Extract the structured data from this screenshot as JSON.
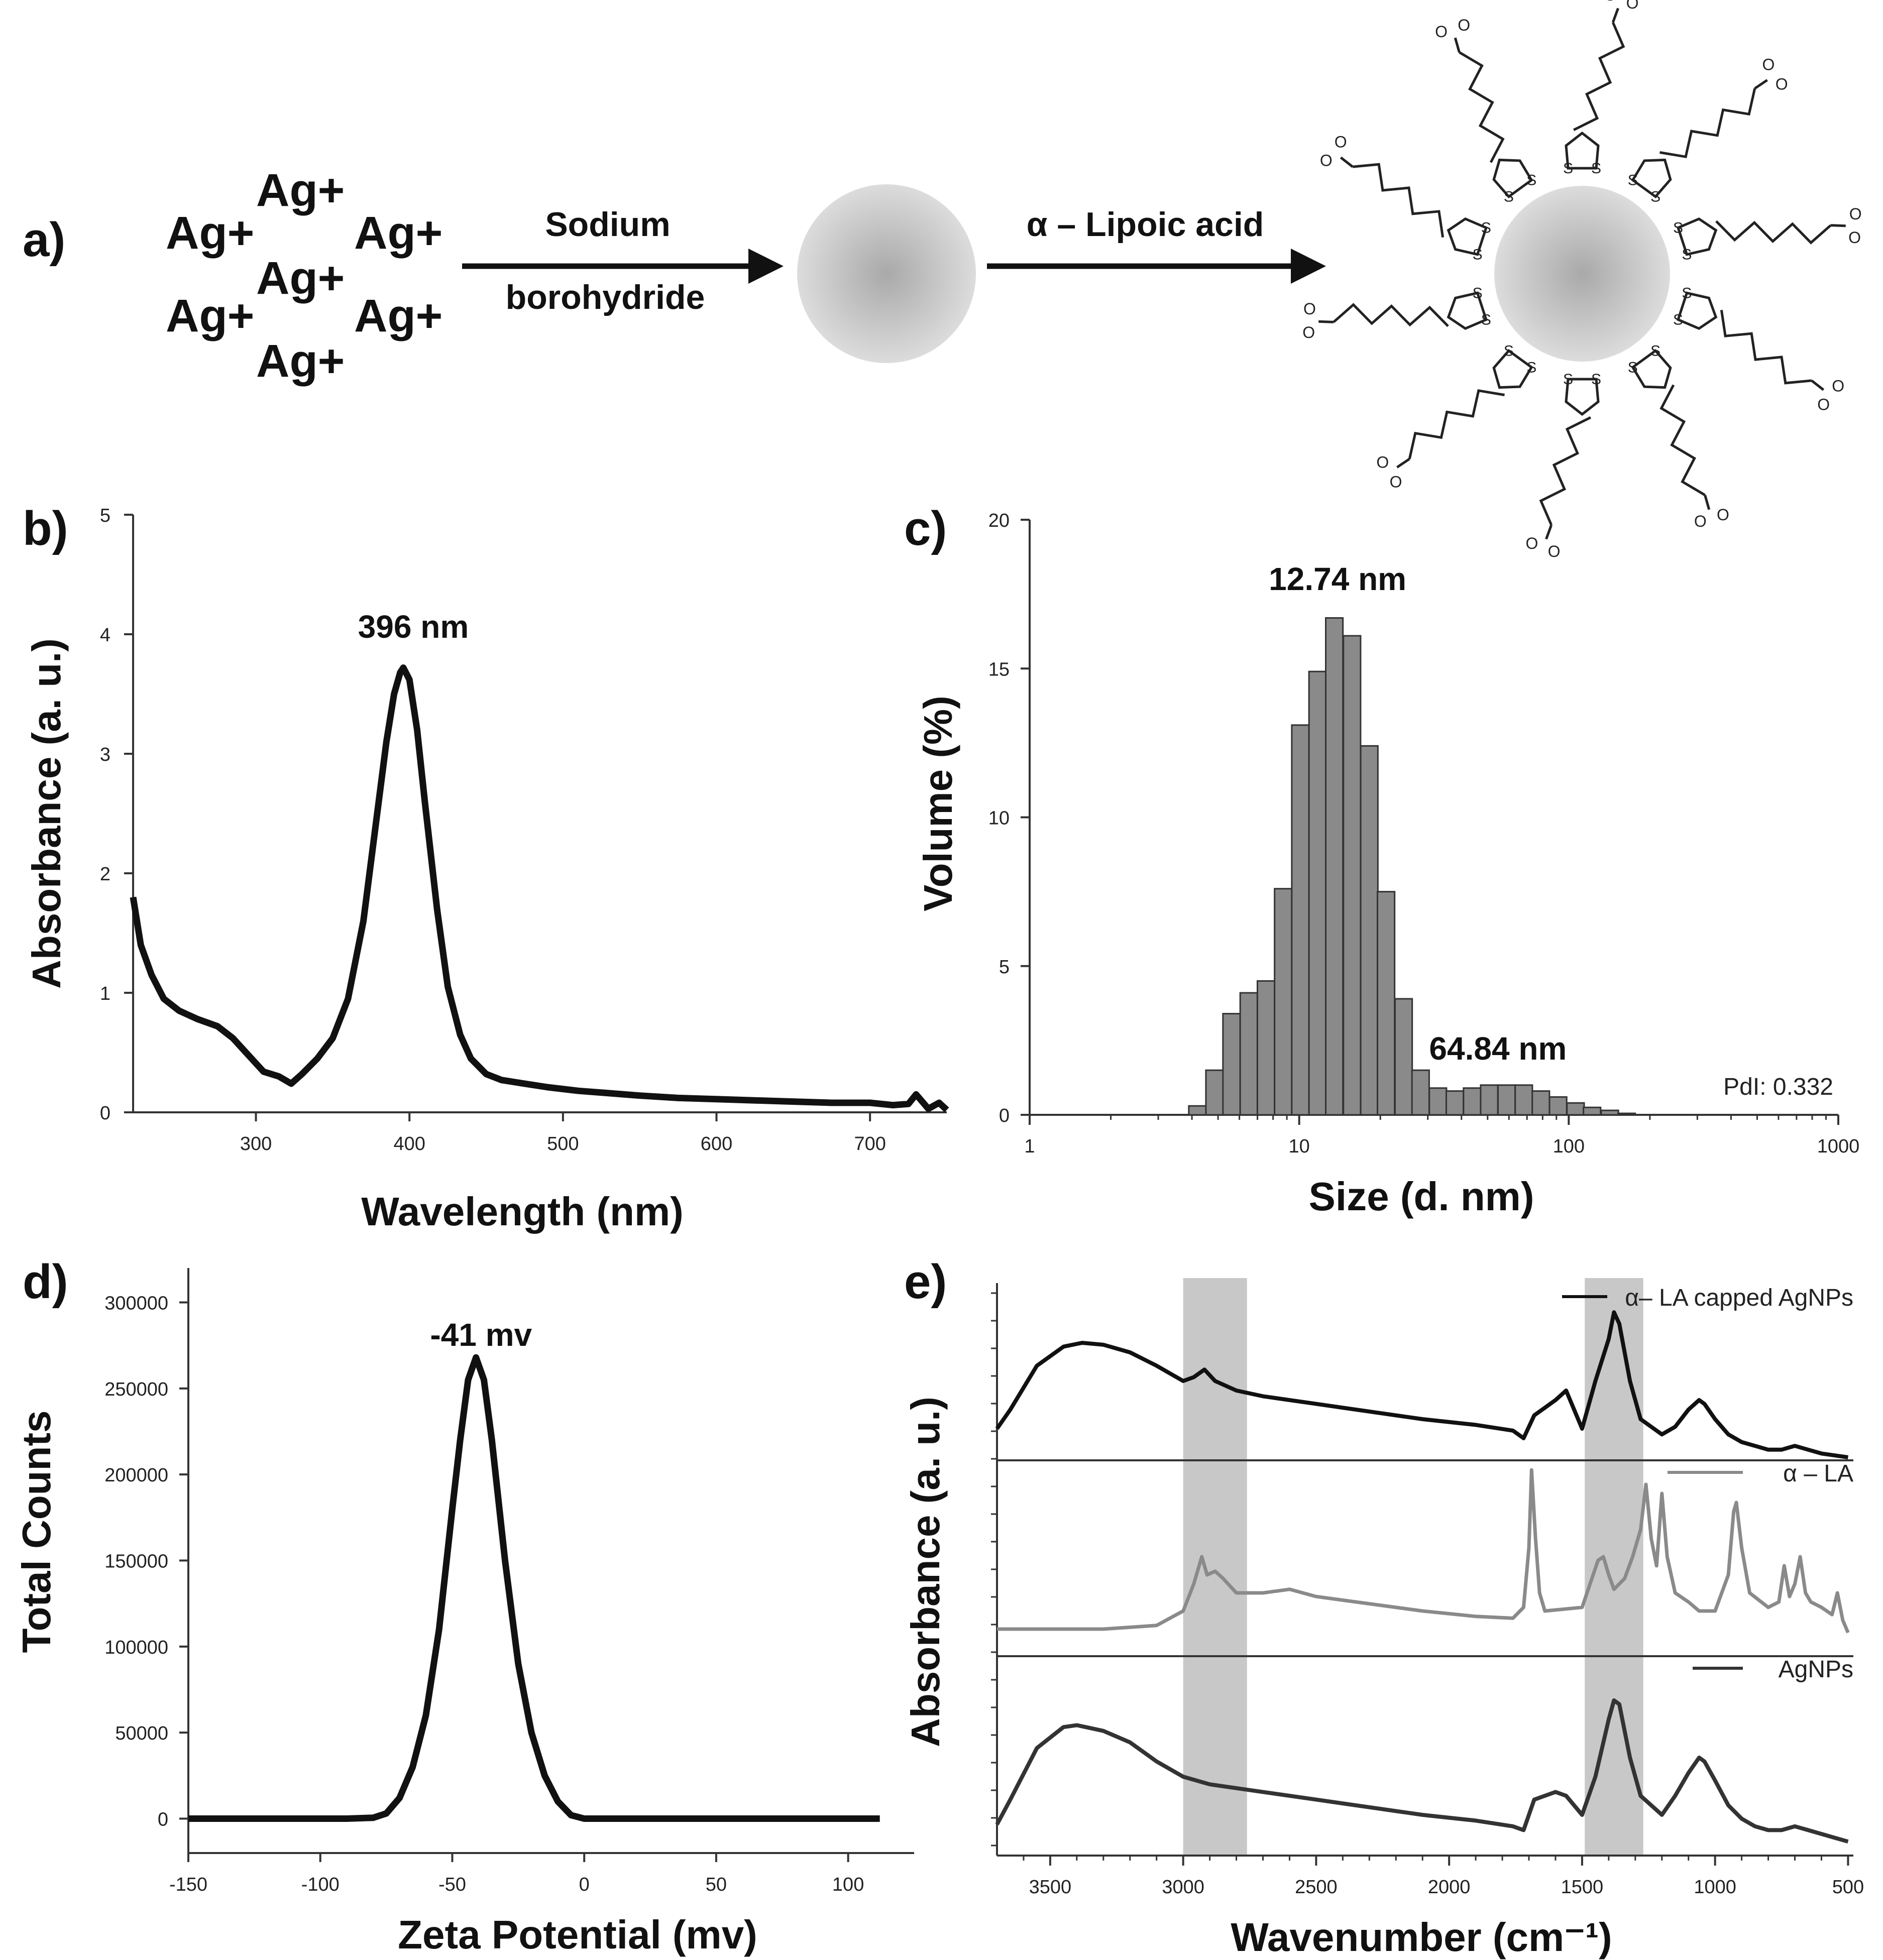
{
  "panel_labels": [
    "a)",
    "b)",
    "c)",
    "d)",
    "e)"
  ],
  "scheme": {
    "ions": [
      "Ag+",
      "Ag+",
      "Ag+",
      "Ag+",
      "Ag+",
      "Ag+",
      "Ag+"
    ],
    "step1_top": "Sodium",
    "step1_bottom": "borohydride",
    "step2": "α – Lipoic acid",
    "particle_color": "#c8c8c8",
    "ligand_atoms": [
      "S",
      "S",
      "O",
      "O"
    ]
  },
  "chart_data": [
    {
      "panel": "b)",
      "type": "line",
      "xlabel": "Wavelength (nm)",
      "ylabel": "Absorbance (a. u.)",
      "xlim": [
        220,
        750
      ],
      "ylim": [
        0,
        5
      ],
      "xticks": [
        300,
        400,
        500,
        600,
        700
      ],
      "yticks": [
        0,
        1,
        2,
        3,
        4,
        5
      ],
      "annotation": {
        "text": "396 nm",
        "x": 396
      },
      "series": [
        {
          "color": "#111111",
          "x": [
            220,
            225,
            232,
            240,
            250,
            262,
            275,
            285,
            295,
            305,
            315,
            323,
            330,
            340,
            350,
            360,
            370,
            378,
            385,
            390,
            394,
            396,
            400,
            405,
            410,
            418,
            425,
            433,
            440,
            450,
            460,
            475,
            490,
            510,
            530,
            550,
            575,
            600,
            625,
            650,
            675,
            700,
            715,
            725,
            730,
            738,
            745,
            750
          ],
          "y": [
            1.8,
            1.4,
            1.15,
            0.95,
            0.85,
            0.78,
            0.72,
            0.62,
            0.48,
            0.34,
            0.3,
            0.24,
            0.32,
            0.45,
            0.62,
            0.95,
            1.6,
            2.4,
            3.1,
            3.5,
            3.68,
            3.72,
            3.62,
            3.2,
            2.6,
            1.7,
            1.05,
            0.65,
            0.45,
            0.32,
            0.27,
            0.24,
            0.21,
            0.18,
            0.16,
            0.14,
            0.12,
            0.11,
            0.1,
            0.09,
            0.08,
            0.08,
            0.06,
            0.07,
            0.15,
            0.03,
            0.08,
            0.02
          ]
        }
      ]
    },
    {
      "panel": "c)",
      "type": "bar",
      "xlabel": "Size (d. nm)",
      "ylabel": "Volume (%)",
      "xscale": "log",
      "xlim": [
        1,
        1000
      ],
      "ylim": [
        0,
        20
      ],
      "xticks": [
        1,
        10,
        100,
        1000
      ],
      "yticks": [
        0,
        5,
        10,
        15,
        20
      ],
      "annotations": [
        {
          "text": "12.74 nm",
          "x": 12.74
        },
        {
          "text": "64.84 nm",
          "x": 64.84
        }
      ],
      "note": "PdI: 0.332",
      "bar_color": "#8a8a8a",
      "x": [
        4.19,
        4.85,
        5.61,
        6.5,
        7.53,
        8.72,
        10.1,
        11.7,
        13.5,
        15.7,
        18.2,
        21.0,
        24.4,
        28.2,
        32.7,
        37.8,
        43.8,
        50.7,
        58.8,
        68.1,
        78.8,
        91.3,
        106,
        122,
        142,
        164
      ],
      "values": [
        0.3,
        1.5,
        3.4,
        4.1,
        4.5,
        7.6,
        13.1,
        14.9,
        16.7,
        16.1,
        12.4,
        7.5,
        3.9,
        1.5,
        0.9,
        0.8,
        0.9,
        1.0,
        1.0,
        1.0,
        0.8,
        0.6,
        0.4,
        0.25,
        0.15,
        0.05
      ]
    },
    {
      "panel": "d)",
      "type": "line",
      "xlabel": "Zeta Potential (mv)",
      "ylabel": "Total Counts",
      "xlim": [
        -150,
        125
      ],
      "ylim": [
        -20000,
        320000
      ],
      "xticks": [
        -150,
        -100,
        -50,
        0,
        50,
        100
      ],
      "yticks": [
        0,
        50000,
        100000,
        150000,
        200000,
        250000,
        300000
      ],
      "annotation": {
        "text": "-41 mv",
        "x": -41
      },
      "series": [
        {
          "color": "#111111",
          "x": [
            -150,
            -120,
            -90,
            -80,
            -75,
            -70,
            -65,
            -60,
            -55,
            -50,
            -47,
            -44,
            -41,
            -38,
            -35,
            -30,
            -25,
            -20,
            -15,
            -10,
            -5,
            0,
            20,
            60,
            112
          ],
          "y": [
            0,
            0,
            0,
            500,
            3000,
            12000,
            30000,
            60000,
            110000,
            180000,
            220000,
            255000,
            268000,
            255000,
            220000,
            150000,
            90000,
            50000,
            25000,
            10000,
            2000,
            0,
            0,
            0,
            0
          ]
        }
      ]
    },
    {
      "panel": "e)",
      "type": "line",
      "xlabel": "Wavenumber (cm⁻¹)",
      "ylabel": "Absorbance (a. u.)",
      "xlim": [
        3700,
        480
      ],
      "xticks": [
        3500,
        3000,
        2500,
        2000,
        1500,
        1000,
        500
      ],
      "highlight_bands": [
        [
          3000,
          2760
        ],
        [
          1490,
          1270
        ]
      ],
      "band_color": "#c8c8c8",
      "series": [
        {
          "name": "α– LA capped AgNPs",
          "color": "#111111",
          "x": [
            3700,
            3650,
            3550,
            3450,
            3380,
            3300,
            3200,
            3100,
            3000,
            2960,
            2920,
            2880,
            2800,
            2700,
            2500,
            2300,
            2100,
            1900,
            1760,
            1720,
            1680,
            1640,
            1600,
            1560,
            1500,
            1450,
            1400,
            1380,
            1360,
            1320,
            1280,
            1200,
            1150,
            1100,
            1060,
            1040,
            1000,
            950,
            900,
            850,
            800,
            750,
            700,
            650,
            600,
            550,
            500
          ],
          "y": [
            0.25,
            0.35,
            0.58,
            0.68,
            0.7,
            0.69,
            0.65,
            0.58,
            0.5,
            0.52,
            0.56,
            0.5,
            0.45,
            0.42,
            0.38,
            0.34,
            0.3,
            0.27,
            0.24,
            0.2,
            0.32,
            0.36,
            0.4,
            0.45,
            0.25,
            0.5,
            0.72,
            0.86,
            0.8,
            0.5,
            0.3,
            0.22,
            0.26,
            0.35,
            0.4,
            0.38,
            0.3,
            0.22,
            0.18,
            0.16,
            0.14,
            0.14,
            0.16,
            0.14,
            0.12,
            0.11,
            0.1
          ]
        },
        {
          "name": "α – LA",
          "color": "#8a8a8a",
          "x": [
            3700,
            3300,
            3100,
            3000,
            2960,
            2930,
            2910,
            2880,
            2850,
            2800,
            2700,
            2600,
            2500,
            2300,
            2100,
            1900,
            1760,
            1720,
            1700,
            1690,
            1675,
            1660,
            1640,
            1500,
            1470,
            1440,
            1420,
            1400,
            1380,
            1340,
            1310,
            1280,
            1260,
            1240,
            1220,
            1200,
            1180,
            1150,
            1100,
            1060,
            1000,
            950,
            930,
            920,
            900,
            870,
            800,
            760,
            740,
            720,
            700,
            680,
            660,
            640,
            600,
            560,
            540,
            520,
            500
          ],
          "y": [
            0.1,
            0.1,
            0.12,
            0.2,
            0.35,
            0.5,
            0.4,
            0.42,
            0.38,
            0.3,
            0.3,
            0.32,
            0.28,
            0.24,
            0.2,
            0.17,
            0.16,
            0.22,
            0.55,
            0.98,
            0.6,
            0.3,
            0.2,
            0.22,
            0.35,
            0.48,
            0.5,
            0.4,
            0.32,
            0.38,
            0.5,
            0.65,
            0.9,
            0.6,
            0.45,
            0.85,
            0.5,
            0.3,
            0.25,
            0.2,
            0.2,
            0.4,
            0.75,
            0.8,
            0.55,
            0.3,
            0.22,
            0.25,
            0.45,
            0.28,
            0.35,
            0.5,
            0.3,
            0.25,
            0.22,
            0.18,
            0.3,
            0.15,
            0.08
          ]
        },
        {
          "name": "AgNPs",
          "color": "#333333",
          "x": [
            3700,
            3650,
            3550,
            3450,
            3400,
            3300,
            3200,
            3100,
            3000,
            2900,
            2800,
            2700,
            2500,
            2300,
            2100,
            1900,
            1760,
            1720,
            1680,
            1640,
            1600,
            1560,
            1500,
            1450,
            1400,
            1380,
            1360,
            1320,
            1280,
            1200,
            1150,
            1100,
            1060,
            1040,
            1000,
            950,
            900,
            850,
            800,
            750,
            700,
            650,
            600,
            550,
            500
          ],
          "y": [
            0.15,
            0.28,
            0.55,
            0.66,
            0.67,
            0.64,
            0.58,
            0.48,
            0.4,
            0.36,
            0.34,
            0.32,
            0.28,
            0.24,
            0.2,
            0.17,
            0.14,
            0.12,
            0.28,
            0.3,
            0.32,
            0.3,
            0.2,
            0.4,
            0.7,
            0.8,
            0.78,
            0.5,
            0.3,
            0.2,
            0.3,
            0.42,
            0.5,
            0.48,
            0.38,
            0.25,
            0.18,
            0.14,
            0.12,
            0.12,
            0.14,
            0.12,
            0.1,
            0.08,
            0.06
          ]
        }
      ]
    }
  ]
}
